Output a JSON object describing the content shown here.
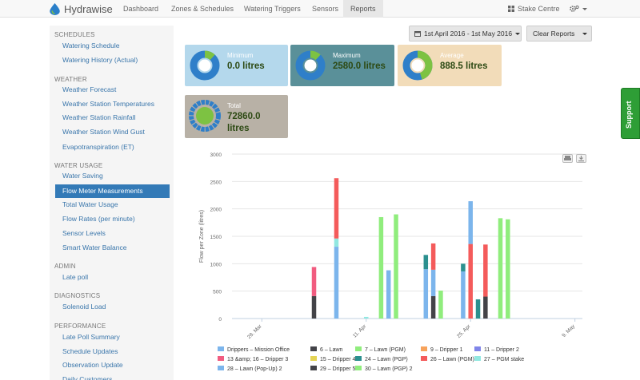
{
  "app": {
    "name": "Hydrawise"
  },
  "nav": {
    "items": [
      {
        "label": "Dashboard"
      },
      {
        "label": "Zones & Schedules"
      },
      {
        "label": "Watering Triggers"
      },
      {
        "label": "Sensors"
      },
      {
        "label": "Reports"
      }
    ],
    "account": "Stake Centre"
  },
  "sidebar": {
    "sections": [
      {
        "title": "SCHEDULES",
        "items": [
          "Watering Schedule",
          "Watering History (Actual)"
        ]
      },
      {
        "title": "WEATHER",
        "items": [
          "Weather Forecast",
          "Weather Station Temperatures",
          "Weather Station Rainfall",
          "Weather Station Wind Gust",
          "Evapotranspiration (ET)"
        ]
      },
      {
        "title": "WATER USAGE",
        "items": [
          "Water Saving",
          "Flow Meter Measurements",
          "Total Water Usage",
          "Flow Rates (per minute)",
          "Sensor Levels",
          "Smart Water Balance"
        ]
      },
      {
        "title": "ADMIN",
        "items": [
          "Late poll"
        ]
      },
      {
        "title": "DIAGNOSTICS",
        "items": [
          "Solenoid Load"
        ]
      },
      {
        "title": "PERFORMANCE",
        "items": [
          "Late Poll Summary",
          "Schedule Updates",
          "Observation Update",
          "Daily Customers"
        ]
      }
    ],
    "active": "Flow Meter Measurements"
  },
  "toolbar": {
    "date_range": "1st April 2016 - 1st May 2016",
    "clear_label": "Clear Reports"
  },
  "stats": [
    {
      "label": "Minimum",
      "value": "0.0 litres",
      "bg": "#b4d8ec",
      "fraction": 0.0
    },
    {
      "label": "Maximum",
      "value": "2580.0 litres",
      "bg": "#5a9099",
      "fraction": 0.1
    },
    {
      "label": "Average",
      "value": "888.5 litres",
      "bg": "#f2dcb9",
      "fraction": 0.45
    },
    {
      "label": "Total",
      "value": "72860.0 litres",
      "bg": "#b8b1a6",
      "fraction": 1.0
    }
  ],
  "support_label": "Support",
  "chart_data": {
    "type": "bar",
    "ylabel": "Flow per Zone (litres)",
    "ylim": [
      0,
      3000
    ],
    "yticks": [
      0,
      500,
      1000,
      1500,
      2000,
      2500,
      3000
    ],
    "xlim": [
      "2016-03-24",
      "2016-05-10"
    ],
    "xticks": [
      {
        "date": "2016-03-28",
        "label": "28. Mar"
      },
      {
        "date": "2016-04-11",
        "label": "11. Apr"
      },
      {
        "date": "2016-04-25",
        "label": "25. Apr"
      },
      {
        "date": "2016-05-09",
        "label": "9. May"
      }
    ],
    "series": [
      {
        "name": "Drippers – Mission Office",
        "color": "#7cb5ec"
      },
      {
        "name": "6 – Lawn",
        "color": "#434348"
      },
      {
        "name": "7 – Lawn (PGM)",
        "color": "#90ed7d"
      },
      {
        "name": "9 – Dripper 1",
        "color": "#f7a35c"
      },
      {
        "name": "11 – Dripper 2",
        "color": "#8085e9"
      },
      {
        "name": "13 &amp; 16 – Dripper 3",
        "color": "#f15c80"
      },
      {
        "name": "15 – Dripper 4",
        "color": "#e4d354"
      },
      {
        "name": "24 – Lawn (PGP)",
        "color": "#2b908f"
      },
      {
        "name": "26 – Lawn (PGM) 2",
        "color": "#f45b5b"
      },
      {
        "name": "27 – PGM stake",
        "color": "#91e8e1"
      },
      {
        "name": "28 – Lawn (Pop-Up) 2",
        "color": "#7cb5ec"
      },
      {
        "name": "29 – Dripper 5",
        "color": "#434348"
      },
      {
        "name": "30 – Lawn (PGP) 2",
        "color": "#90ed7d"
      }
    ],
    "bars": [
      {
        "date": "2016-04-04",
        "series": "6 – Lawn",
        "value": 410
      },
      {
        "date": "2016-04-04",
        "series": "13 &amp; 16 – Dripper 3",
        "value": 530
      },
      {
        "date": "2016-04-07",
        "series": "Drippers – Mission Office",
        "value": 1310
      },
      {
        "date": "2016-04-07",
        "series": "27 – PGM stake",
        "value": 150
      },
      {
        "date": "2016-04-07",
        "series": "26 – Lawn (PGM) 2",
        "value": 1100
      },
      {
        "date": "2016-04-11",
        "series": "27 – PGM stake",
        "value": 30
      },
      {
        "date": "2016-04-13",
        "series": "7 – Lawn (PGM)",
        "value": 1850
      },
      {
        "date": "2016-04-14",
        "series": "Drippers – Mission Office",
        "value": 880
      },
      {
        "date": "2016-04-15",
        "series": "30 – Lawn (PGP) 2",
        "value": 1900
      },
      {
        "date": "2016-04-19",
        "series": "Drippers – Mission Office",
        "value": 900
      },
      {
        "date": "2016-04-19",
        "series": "24 – Lawn (PGP)",
        "value": 260
      },
      {
        "date": "2016-04-20",
        "series": "6 – Lawn",
        "value": 410
      },
      {
        "date": "2016-04-20",
        "series": "Drippers – Mission Office",
        "value": 480
      },
      {
        "date": "2016-04-20",
        "series": "26 – Lawn (PGM) 2",
        "value": 480
      },
      {
        "date": "2016-04-21",
        "series": "7 – Lawn (PGM)",
        "value": 510
      },
      {
        "date": "2016-04-24",
        "series": "Drippers – Mission Office",
        "value": 860
      },
      {
        "date": "2016-04-24",
        "series": "24 – Lawn (PGP)",
        "value": 140
      },
      {
        "date": "2016-04-25",
        "series": "26 – Lawn (PGM) 2",
        "value": 1360
      },
      {
        "date": "2016-04-25",
        "series": "Drippers – Mission Office",
        "value": 780
      },
      {
        "date": "2016-04-26",
        "series": "24 – Lawn (PGP)",
        "value": 350
      },
      {
        "date": "2016-04-27",
        "series": "6 – Lawn",
        "value": 400
      },
      {
        "date": "2016-04-27",
        "series": "26 – Lawn (PGM) 2",
        "value": 950
      },
      {
        "date": "2016-04-29",
        "series": "7 – Lawn (PGM)",
        "value": 1830
      },
      {
        "date": "2016-04-30",
        "series": "30 – Lawn (PGP) 2",
        "value": 1810
      }
    ]
  }
}
